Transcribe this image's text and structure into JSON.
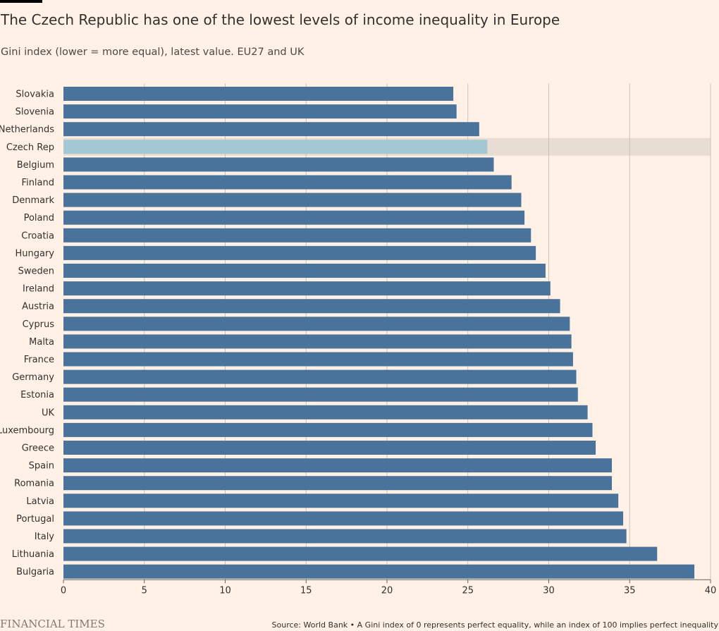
{
  "header": {
    "title": "The Czech Republic has one of the lowest levels of income inequality in Europe",
    "subtitle": "Gini index (lower = more equal), latest value. EU27 and UK"
  },
  "footer": {
    "logo_text": "FINANCIAL TIMES",
    "source": "Source: World Bank • A Gini index of 0 represents perfect equality, while an index of 100 implies perfect inequality"
  },
  "colors": {
    "background": "#fff1e5",
    "bar": "#4a739b",
    "highlight_bar": "#a4c7d4",
    "highlight_band": "#e8ddd2",
    "gridline": "#ccc1b7",
    "text": "#33302e"
  },
  "chart_data": {
    "type": "bar",
    "orientation": "horizontal",
    "title": "The Czech Republic has one of the lowest levels of income inequality in Europe",
    "subtitle": "Gini index (lower = more equal), latest value. EU27 and UK",
    "categories": [
      "Slovakia",
      "Slovenia",
      "Netherlands",
      "Czech Rep",
      "Belgium",
      "Finland",
      "Denmark",
      "Poland",
      "Croatia",
      "Hungary",
      "Sweden",
      "Ireland",
      "Austria",
      "Cyprus",
      "Malta",
      "France",
      "Germany",
      "Estonia",
      "UK",
      "Luxembourg",
      "Greece",
      "Spain",
      "Romania",
      "Latvia",
      "Portugal",
      "Italy",
      "Lithuania",
      "Bulgaria"
    ],
    "values": [
      24.1,
      24.3,
      25.7,
      26.2,
      26.6,
      27.7,
      28.3,
      28.5,
      28.9,
      29.2,
      29.8,
      30.1,
      30.7,
      31.3,
      31.4,
      31.5,
      31.7,
      31.8,
      32.4,
      32.7,
      32.9,
      33.9,
      33.9,
      34.3,
      34.6,
      34.8,
      36.7,
      39.0
    ],
    "highlight": "Czech Rep",
    "xlim": [
      0,
      40
    ],
    "xticks": [
      0,
      5,
      10,
      15,
      20,
      25,
      30,
      35,
      40
    ],
    "xlabel": "",
    "ylabel": "",
    "grid": true
  }
}
